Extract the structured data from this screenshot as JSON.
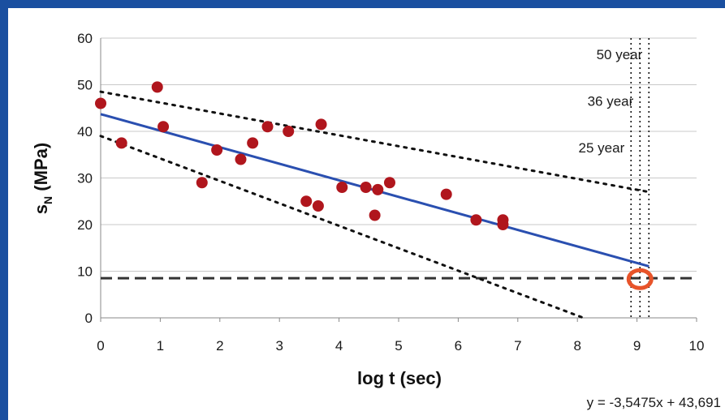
{
  "chart_data": {
    "type": "scatter",
    "xlabel": "log t (sec)",
    "ylabel": "s",
    "ylabel_sub": "N",
    "ylabel_unit": " (MPa)",
    "xlim": [
      0,
      10
    ],
    "ylim": [
      0,
      60
    ],
    "x_ticks": [
      0,
      1,
      2,
      3,
      4,
      5,
      6,
      7,
      8,
      9,
      10
    ],
    "y_ticks": [
      0,
      10,
      20,
      30,
      40,
      50,
      60
    ],
    "grid": "horizontal",
    "series": [
      {
        "marker": "filled-circle",
        "color": "#b0161d",
        "points": [
          [
            0.0,
            46
          ],
          [
            0.35,
            37.5
          ],
          [
            0.95,
            49.5
          ],
          [
            1.05,
            41
          ],
          [
            1.7,
            29
          ],
          [
            1.95,
            36
          ],
          [
            2.35,
            34
          ],
          [
            2.55,
            37.5
          ],
          [
            2.8,
            41
          ],
          [
            3.15,
            40
          ],
          [
            3.45,
            25
          ],
          [
            3.65,
            24
          ],
          [
            3.7,
            41.5
          ],
          [
            4.05,
            28
          ],
          [
            4.45,
            28
          ],
          [
            4.6,
            22
          ],
          [
            4.65,
            27.5
          ],
          [
            4.85,
            29
          ],
          [
            5.8,
            26.5
          ],
          [
            6.3,
            21
          ],
          [
            6.75,
            21
          ],
          [
            6.75,
            20
          ]
        ]
      }
    ],
    "trend_line": {
      "color": "#2a4fb0",
      "x_range": [
        0,
        9.2
      ],
      "slope": -3.5475,
      "intercept": 43.691,
      "equation_label": "y = -3,5475x + 43,691"
    },
    "confidence_lines": [
      {
        "x_range": [
          0,
          9.2
        ],
        "y_range": [
          48.5,
          27
        ],
        "style": "dotted"
      },
      {
        "x_range": [
          0,
          8.1
        ],
        "y_range": [
          39,
          0
        ],
        "style": "dotted"
      }
    ],
    "threshold_line": {
      "y": 8.5,
      "style": "dashed",
      "color": "#333333"
    },
    "vertical_markers": [
      {
        "x": 8.9,
        "label": "25 year",
        "label_y": 36.5
      },
      {
        "x": 9.05,
        "label": "36 year",
        "label_y": 46.5
      },
      {
        "x": 9.2,
        "label": "50 year",
        "label_y": 56.5
      }
    ],
    "highlight": {
      "x": 9.05,
      "y": 8.3,
      "color": "#e8542a"
    }
  }
}
